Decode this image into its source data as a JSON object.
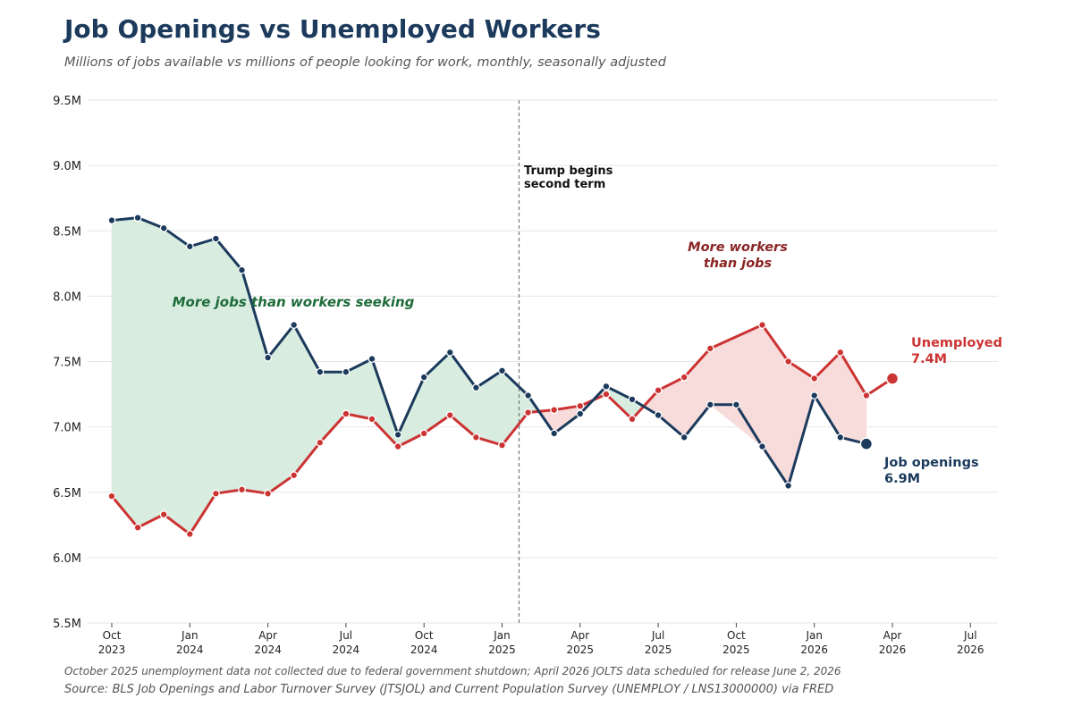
{
  "header": {
    "title": "Job Openings vs Unemployed Workers",
    "subtitle": "Millions of jobs available vs millions of people looking for work, monthly, seasonally adjusted"
  },
  "footer": {
    "note": "October 2025 unemployment data not collected due to federal government shutdown; April 2026 JOLTS data scheduled for release June 2, 2026",
    "source": "Source: BLS Job Openings and Labor Turnover Survey (JTSJOL) and Current Population Survey (UNEMPLOY / LNS13000000) via FRED"
  },
  "colors": {
    "openings": "#1b3a5c",
    "unemployed": "#cc3333",
    "fill_more_jobs": "#d8ede0",
    "fill_more_workers": "#f8dcdc",
    "text_green": "#1f6b3a",
    "text_red": "#8b2525"
  },
  "chart_data": {
    "type": "line",
    "title": "Job Openings vs Unemployed Workers",
    "ylim": [
      5.5,
      9.5
    ],
    "y_ticks": [
      5.5,
      6.0,
      6.5,
      7.0,
      7.5,
      8.0,
      8.5,
      9.0,
      9.5
    ],
    "y_tick_labels": [
      "5.5M",
      "6.0M",
      "6.5M",
      "7.0M",
      "7.5M",
      "8.0M",
      "8.5M",
      "9.0M",
      "9.5M"
    ],
    "x_ticks": [
      {
        "date": "2023-10",
        "month": "Oct",
        "year": "2023"
      },
      {
        "date": "2024-01",
        "month": "Jan",
        "year": "2024"
      },
      {
        "date": "2024-04",
        "month": "Apr",
        "year": "2024"
      },
      {
        "date": "2024-07",
        "month": "Jul",
        "year": "2024"
      },
      {
        "date": "2024-10",
        "month": "Oct",
        "year": "2024"
      },
      {
        "date": "2025-01",
        "month": "Jan",
        "year": "2025"
      },
      {
        "date": "2025-04",
        "month": "Apr",
        "year": "2025"
      },
      {
        "date": "2025-07",
        "month": "Jul",
        "year": "2025"
      },
      {
        "date": "2025-10",
        "month": "Oct",
        "year": "2025"
      },
      {
        "date": "2026-01",
        "month": "Jan",
        "year": "2026"
      },
      {
        "date": "2026-04",
        "month": "Apr",
        "year": "2026"
      },
      {
        "date": "2026-07",
        "month": "Jul",
        "year": "2026"
      }
    ],
    "grid": true,
    "series": [
      {
        "key": "openings",
        "label_line1": "Job openings",
        "label_line2": "6.9M",
        "points": [
          [
            "2023-10",
            8.58
          ],
          [
            "2023-11",
            8.6
          ],
          [
            "2023-12",
            8.52
          ],
          [
            "2024-01",
            8.38
          ],
          [
            "2024-02",
            8.44
          ],
          [
            "2024-03",
            8.2
          ],
          [
            "2024-04",
            7.53
          ],
          [
            "2024-05",
            7.78
          ],
          [
            "2024-06",
            7.42
          ],
          [
            "2024-07",
            7.42
          ],
          [
            "2024-08",
            7.52
          ],
          [
            "2024-09",
            6.94
          ],
          [
            "2024-10",
            7.38
          ],
          [
            "2024-11",
            7.57
          ],
          [
            "2024-12",
            7.3
          ],
          [
            "2025-01",
            7.43
          ],
          [
            "2025-02",
            7.24
          ],
          [
            "2025-03",
            6.95
          ],
          [
            "2025-04",
            7.1
          ],
          [
            "2025-05",
            7.31
          ],
          [
            "2025-06",
            7.21
          ],
          [
            "2025-07",
            7.09
          ],
          [
            "2025-08",
            6.92
          ],
          [
            "2025-09",
            7.17
          ],
          [
            "2025-10",
            7.17
          ],
          [
            "2025-11",
            6.85
          ],
          [
            "2025-12",
            6.55
          ],
          [
            "2026-01",
            7.24
          ],
          [
            "2026-02",
            6.92
          ],
          [
            "2026-03",
            6.87
          ]
        ]
      },
      {
        "key": "unemployed",
        "label_line1": "Unemployed",
        "label_line2": "7.4M",
        "points": [
          [
            "2023-10",
            6.47
          ],
          [
            "2023-11",
            6.23
          ],
          [
            "2023-12",
            6.33
          ],
          [
            "2024-01",
            6.18
          ],
          [
            "2024-02",
            6.49
          ],
          [
            "2024-03",
            6.52
          ],
          [
            "2024-04",
            6.49
          ],
          [
            "2024-05",
            6.63
          ],
          [
            "2024-06",
            6.88
          ],
          [
            "2024-07",
            7.1
          ],
          [
            "2024-08",
            7.06
          ],
          [
            "2024-09",
            6.85
          ],
          [
            "2024-10",
            6.95
          ],
          [
            "2024-11",
            7.09
          ],
          [
            "2024-12",
            6.92
          ],
          [
            "2025-01",
            6.86
          ],
          [
            "2025-02",
            7.11
          ],
          [
            "2025-03",
            7.13
          ],
          [
            "2025-04",
            7.16
          ],
          [
            "2025-05",
            7.25
          ],
          [
            "2025-06",
            7.06
          ],
          [
            "2025-07",
            7.28
          ],
          [
            "2025-08",
            7.38
          ],
          [
            "2025-09",
            7.6
          ],
          [
            "2025-11",
            7.78
          ],
          [
            "2025-12",
            7.5
          ],
          [
            "2026-01",
            7.37
          ],
          [
            "2026-02",
            7.57
          ],
          [
            "2026-03",
            7.24
          ],
          [
            "2026-04",
            7.37
          ]
        ]
      }
    ],
    "event_line": {
      "date": "2025-01",
      "label_line1": "Trump begins",
      "label_line2": "second term"
    },
    "annotations": {
      "more_jobs": "More jobs than workers seeking",
      "more_workers_line1": "More workers",
      "more_workers_line2": "than jobs"
    }
  }
}
